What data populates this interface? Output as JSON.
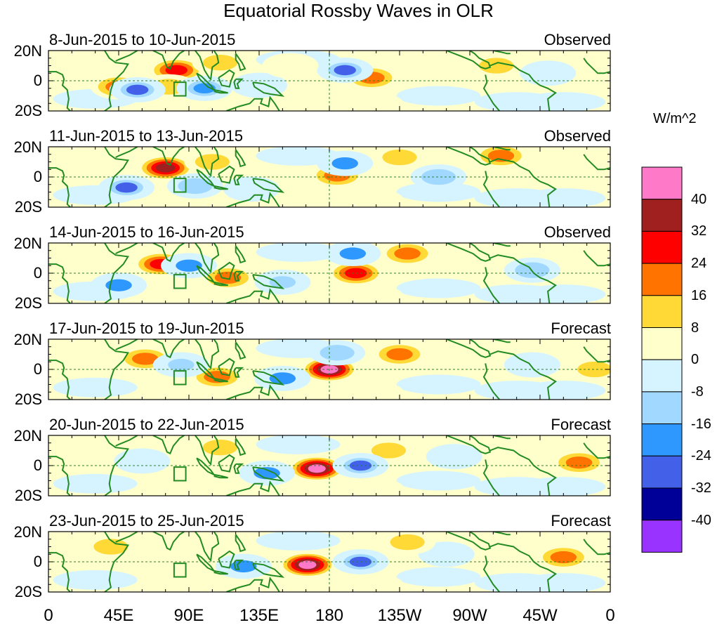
{
  "title": "Equatorial Rossby Waves in OLR",
  "units": "W/m^2",
  "lat_labels": [
    "20N",
    "0",
    "20S"
  ],
  "lon_labels": [
    "0",
    "45E",
    "90E",
    "135E",
    "180",
    "135W",
    "90W",
    "45W",
    "0"
  ],
  "panels": [
    {
      "dates": "8-Jun-2015 to 10-Jun-2015",
      "type": "Observed",
      "anomalies": [
        {
          "lon": 82,
          "lat": 7,
          "value": 30
        },
        {
          "lon": 45,
          "lat": -4,
          "value": 16
        },
        {
          "lon": 77,
          "lat": -4,
          "value": 10
        },
        {
          "lon": 110,
          "lat": 12,
          "value": 8
        },
        {
          "lon": 207,
          "lat": 2,
          "value": 22
        },
        {
          "lon": 287,
          "lat": 10,
          "value": 10
        },
        {
          "lon": 57,
          "lat": -6,
          "value": -30
        },
        {
          "lon": 100,
          "lat": -5,
          "value": -24
        },
        {
          "lon": 135,
          "lat": -3,
          "value": -8
        },
        {
          "lon": 190,
          "lat": 7,
          "value": -30
        },
        {
          "lon": 155,
          "lat": 10,
          "value": 6
        },
        {
          "lon": 320,
          "lat": 5,
          "value": -8
        }
      ]
    },
    {
      "dates": "11-Jun-2015 to 13-Jun-2015",
      "type": "Observed",
      "anomalies": [
        {
          "lon": 75,
          "lat": 6,
          "value": 32
        },
        {
          "lon": 105,
          "lat": 10,
          "value": 8
        },
        {
          "lon": 185,
          "lat": 1,
          "value": 16
        },
        {
          "lon": 290,
          "lat": 14,
          "value": 16
        },
        {
          "lon": 50,
          "lat": -7,
          "value": -26
        },
        {
          "lon": 94,
          "lat": -6,
          "value": -14
        },
        {
          "lon": 190,
          "lat": 9,
          "value": -20
        },
        {
          "lon": 130,
          "lat": -8,
          "value": -8
        },
        {
          "lon": 225,
          "lat": 13,
          "value": 8
        },
        {
          "lon": 250,
          "lat": 0,
          "value": -10
        }
      ]
    },
    {
      "dates": "14-Jun-2015 to 16-Jun-2015",
      "type": "Observed",
      "anomalies": [
        {
          "lon": 72,
          "lat": 6,
          "value": 28
        },
        {
          "lon": 115,
          "lat": -3,
          "value": 16
        },
        {
          "lon": 197,
          "lat": 0,
          "value": 26
        },
        {
          "lon": 230,
          "lat": 13,
          "value": 16
        },
        {
          "lon": 90,
          "lat": 5,
          "value": -20
        },
        {
          "lon": 45,
          "lat": -8,
          "value": -18
        },
        {
          "lon": 195,
          "lat": 13,
          "value": -20
        },
        {
          "lon": 150,
          "lat": -6,
          "value": -16
        },
        {
          "lon": 310,
          "lat": 2,
          "value": -10
        }
      ]
    },
    {
      "dates": "17-Jun-2015 to 19-Jun-2015",
      "type": "Forecast",
      "anomalies": [
        {
          "lon": 62,
          "lat": 7,
          "value": 18
        },
        {
          "lon": 108,
          "lat": -5,
          "value": 18
        },
        {
          "lon": 180,
          "lat": 0,
          "value": 40
        },
        {
          "lon": 225,
          "lat": 10,
          "value": 16
        },
        {
          "lon": 150,
          "lat": -6,
          "value": -18
        },
        {
          "lon": 185,
          "lat": 11,
          "value": -10
        },
        {
          "lon": 85,
          "lat": 3,
          "value": -16
        },
        {
          "lon": 310,
          "lat": 3,
          "value": -8
        },
        {
          "lon": 350,
          "lat": 0,
          "value": 8
        }
      ]
    },
    {
      "dates": "20-Jun-2015 to 22-Jun-2015",
      "type": "Forecast",
      "anomalies": [
        {
          "lon": 172,
          "lat": -2,
          "value": 42
        },
        {
          "lon": 218,
          "lat": 10,
          "value": 14
        },
        {
          "lon": 340,
          "lat": 2,
          "value": 18
        },
        {
          "lon": 200,
          "lat": 0,
          "value": -28
        },
        {
          "lon": 140,
          "lat": -5,
          "value": -18
        },
        {
          "lon": 110,
          "lat": 12,
          "value": 8
        },
        {
          "lon": 60,
          "lat": 3,
          "value": -8
        },
        {
          "lon": 260,
          "lat": 6,
          "value": -8
        }
      ]
    },
    {
      "dates": "23-Jun-2015 to 25-Jun-2015",
      "type": "Forecast",
      "anomalies": [
        {
          "lon": 166,
          "lat": -2,
          "value": 42
        },
        {
          "lon": 330,
          "lat": 3,
          "value": 20
        },
        {
          "lon": 200,
          "lat": 0,
          "value": -30
        },
        {
          "lon": 125,
          "lat": -3,
          "value": -20
        },
        {
          "lon": 255,
          "lat": 5,
          "value": -8
        },
        {
          "lon": 230,
          "lat": 13,
          "value": 8
        },
        {
          "lon": 40,
          "lat": 10,
          "value": 10
        }
      ]
    }
  ],
  "colorbar": {
    "colors": [
      "#ff79c9",
      "#a02020",
      "#ff0000",
      "#ff7300",
      "#ffd936",
      "#ffffcc",
      "#d6f4ff",
      "#a0d8ff",
      "#2f98ff",
      "#4361e8",
      "#000099",
      "#9933ff"
    ],
    "labels": [
      "40",
      "32",
      "24",
      "16",
      "8",
      "0",
      "-8",
      "-16",
      "-24",
      "-32",
      "-40"
    ]
  }
}
